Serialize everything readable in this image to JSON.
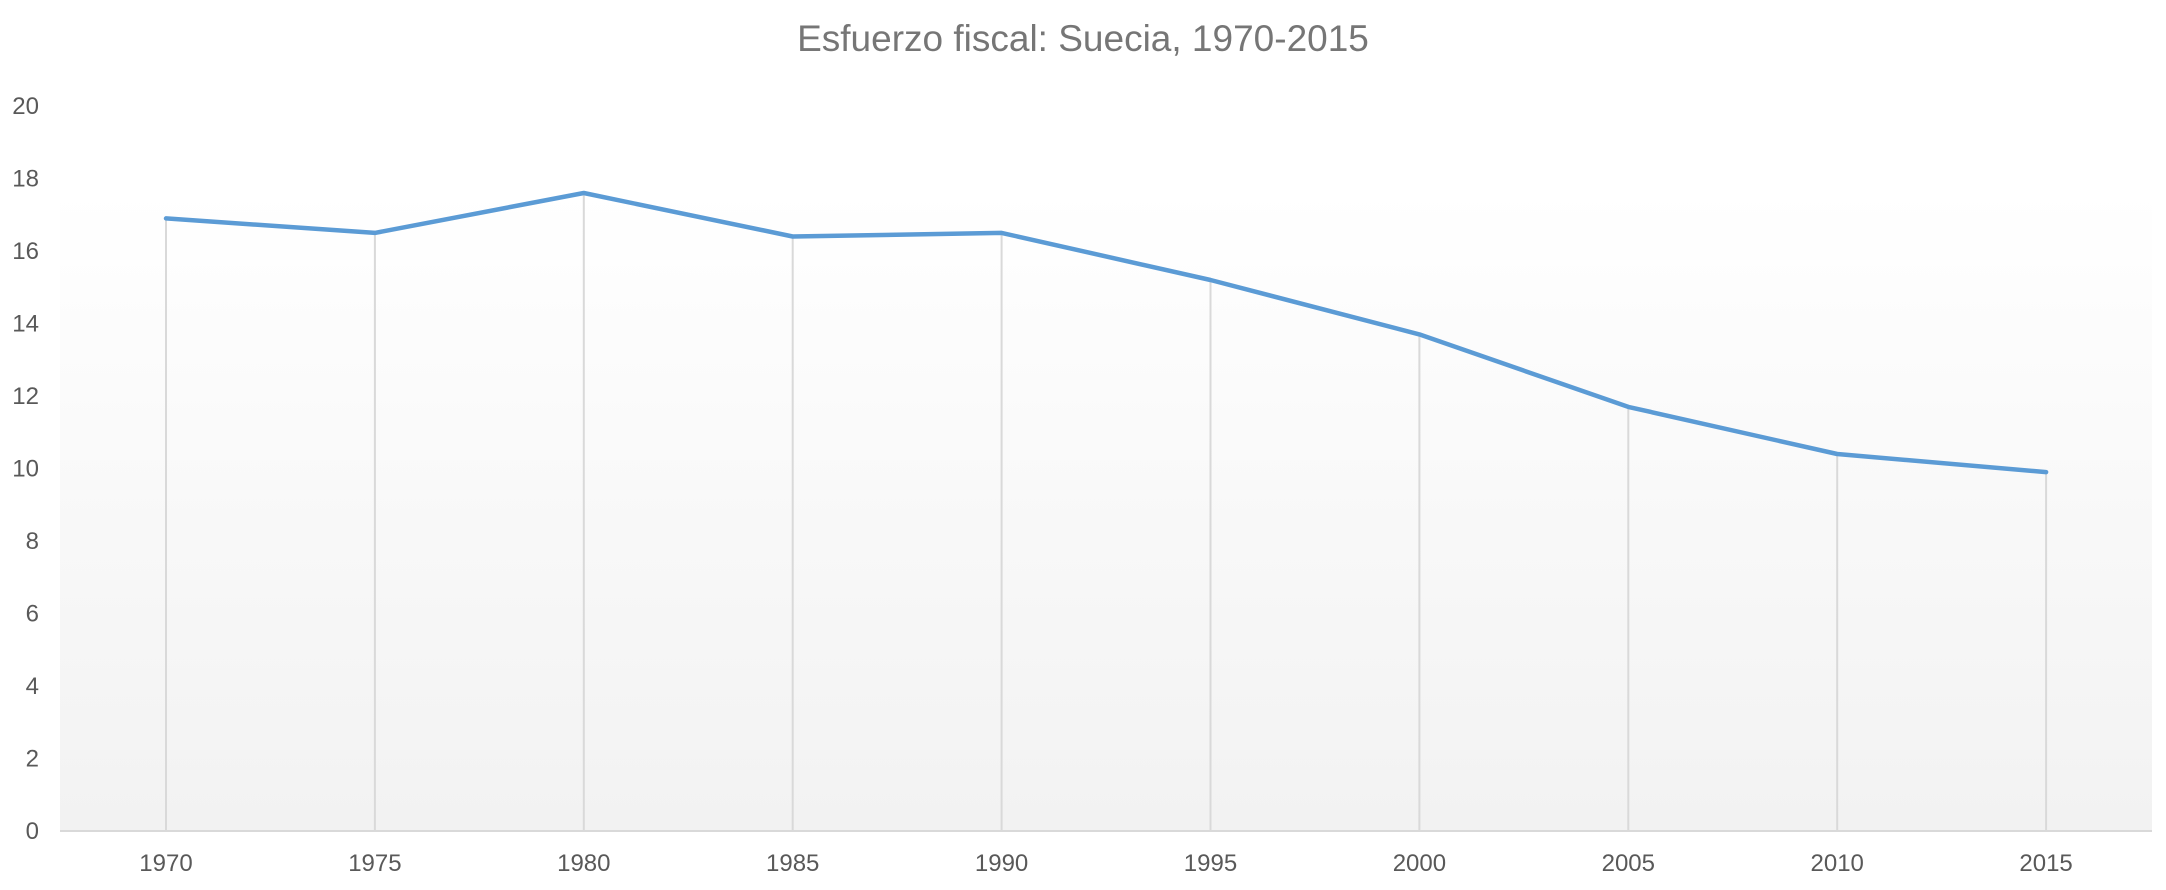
{
  "chart_data": {
    "type": "line",
    "title": "Esfuerzo fiscal: Suecia, 1970-2015",
    "xlabel": "",
    "ylabel": "",
    "categories": [
      "1970",
      "1975",
      "1980",
      "1985",
      "1990",
      "1995",
      "2000",
      "2005",
      "2010",
      "2015"
    ],
    "series": [
      {
        "name": "Esfuerzo fiscal",
        "color": "#5b9bd5",
        "values": [
          16.9,
          16.5,
          17.6,
          16.4,
          16.5,
          15.2,
          13.7,
          11.7,
          10.4,
          9.9
        ]
      }
    ],
    "ylim": [
      0,
      20
    ],
    "yticks": [
      0,
      2,
      4,
      6,
      8,
      10,
      12,
      14,
      16,
      18,
      20
    ],
    "grid": false,
    "drop_lines": true,
    "legend": null
  },
  "colors": {
    "line": "#5b9bd5",
    "drop_line": "#d9d9d9",
    "axis": "#d9d9d9",
    "tick_text": "#595959",
    "title_text": "#767676",
    "plot_bg_top": "#ffffff",
    "plot_bg_bottom": "#f2f2f2"
  }
}
